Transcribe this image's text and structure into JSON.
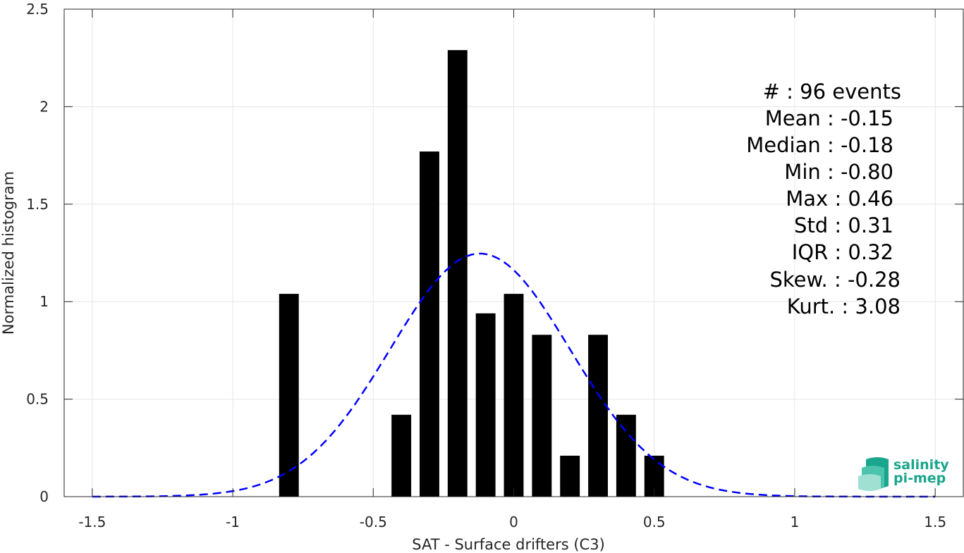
{
  "chart_data": {
    "type": "bar",
    "xlabel": "SAT - Surface drifters (C3)",
    "ylabel": "Normalized histogram",
    "xlim": [
      -1.6,
      1.6
    ],
    "ylim": [
      0,
      2.5
    ],
    "xticks": [
      -1.5,
      -1,
      -0.5,
      0,
      0.5,
      1,
      1.5
    ],
    "xtick_labels": [
      "-1.5",
      "-1",
      "-0.5",
      "0",
      "0.5",
      "1",
      "1.5"
    ],
    "yticks": [
      0,
      0.5,
      1,
      1.5,
      2,
      2.5
    ],
    "ytick_labels": [
      "0",
      "0.5",
      "1",
      "1.5",
      "2",
      "2.5"
    ],
    "grid": true,
    "bars": {
      "centers": [
        -0.8,
        -0.4,
        -0.3,
        -0.2,
        -0.1,
        0.0,
        0.1,
        0.2,
        0.3,
        0.4,
        0.5
      ],
      "values": [
        1.04,
        0.42,
        1.77,
        2.29,
        0.94,
        1.04,
        0.83,
        0.21,
        0.83,
        0.42,
        0.21
      ],
      "width": 0.07,
      "color": "#000000"
    },
    "fit_curve": {
      "style": "dashed",
      "color": "#0000ff",
      "mean": -0.12,
      "std": 0.32,
      "x_range": [
        -1.5,
        1.5
      ]
    },
    "stats": [
      "#  : 96 events",
      "Mean : -0.15",
      "Median : -0.18",
      "Min : -0.80",
      "Max : 0.46",
      "Std : 0.31",
      "IQR : 0.32",
      "Skew. : -0.28",
      "Kurt. : 3.08"
    ]
  },
  "logo": {
    "line1": "salinity",
    "line2": "pi-mep",
    "color": "#1aa68c"
  }
}
